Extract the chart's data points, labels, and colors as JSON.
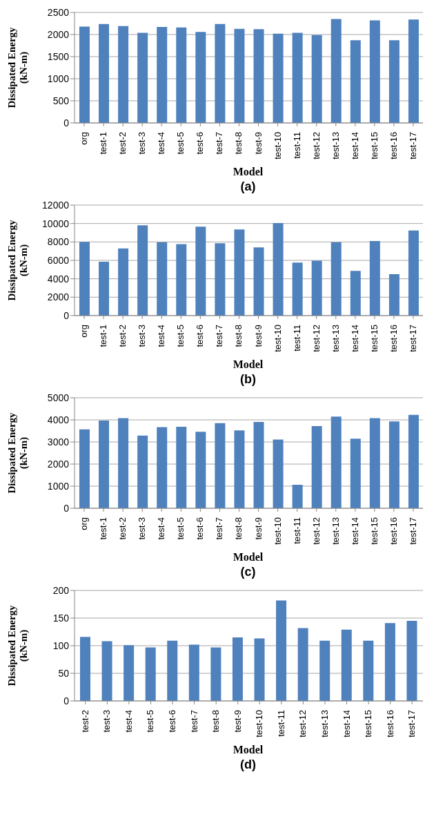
{
  "chart_data": [
    {
      "type": "bar",
      "xlabel": "Model",
      "ylabel": "Dissipated Energy (kN-m)",
      "annotations": [
        "(a)"
      ],
      "categories": [
        "org",
        "test-1",
        "test-2",
        "test-3",
        "test-4",
        "test-5",
        "test-6",
        "test-7",
        "test-8",
        "test-9",
        "test-10",
        "test-11",
        "test-12",
        "test-13",
        "test-14",
        "test-15",
        "test-16",
        "test-17"
      ],
      "color": "#4f81bd",
      "values": [
        2180,
        2240,
        2190,
        2040,
        2170,
        2160,
        2060,
        2240,
        2130,
        2120,
        2020,
        2040,
        1990,
        2350,
        1870,
        2320,
        1870,
        2340
      ],
      "ylim": [
        0,
        2500
      ],
      "yticks": [
        0,
        500,
        1000,
        1500,
        2000,
        2500
      ],
      "grid": "y",
      "legend": false
    },
    {
      "type": "bar",
      "xlabel": "Model",
      "ylabel": "Dissipated Energy (kN-m)",
      "annotations": [
        "(b)"
      ],
      "categories": [
        "org",
        "test-1",
        "test-2",
        "test-3",
        "test-4",
        "test-5",
        "test-6",
        "test-7",
        "test-8",
        "test-9",
        "test-10",
        "test-11",
        "test-12",
        "test-13",
        "test-14",
        "test-15",
        "test-16",
        "test-17"
      ],
      "color": "#4f81bd",
      "values": [
        8000,
        5850,
        7300,
        9800,
        7970,
        7760,
        9650,
        7850,
        9350,
        7400,
        10050,
        5750,
        5970,
        7970,
        4850,
        8100,
        4500,
        9250
      ],
      "ylim": [
        0,
        12000
      ],
      "yticks": [
        0,
        2000,
        4000,
        6000,
        8000,
        10000,
        12000
      ],
      "grid": "y",
      "legend": false
    },
    {
      "type": "bar",
      "xlabel": "Model",
      "ylabel": "Dissipated Energy (kN-m)",
      "annotations": [
        "(c)"
      ],
      "categories": [
        "org",
        "test-1",
        "test-2",
        "test-3",
        "test-4",
        "test-5",
        "test-6",
        "test-7",
        "test-8",
        "test-9",
        "test-10",
        "test-11",
        "test-12",
        "test-13",
        "test-14",
        "test-15",
        "test-16",
        "test-17"
      ],
      "color": "#4f81bd",
      "values": [
        3570,
        3970,
        4080,
        3290,
        3670,
        3690,
        3460,
        3850,
        3520,
        3910,
        3110,
        1060,
        3720,
        4150,
        3150,
        4080,
        3930,
        4230
      ],
      "ylim": [
        0,
        5000
      ],
      "yticks": [
        0,
        1000,
        2000,
        3000,
        4000,
        5000
      ],
      "grid": "y",
      "legend": false
    },
    {
      "type": "bar",
      "xlabel": "Model",
      "ylabel": "Dissipated Energy (kN-m)",
      "annotations": [
        "(d)"
      ],
      "categories": [
        "test-2",
        "test-3",
        "test-4",
        "test-5",
        "test-6",
        "test-7",
        "test-8",
        "test-9",
        "test-10",
        "test-11",
        "test-12",
        "test-13",
        "test-14",
        "test-15",
        "test-16",
        "test-17"
      ],
      "color": "#4f81bd",
      "values": [
        116,
        108,
        101,
        97,
        109,
        102,
        97,
        115,
        113,
        182,
        132,
        109,
        129,
        109,
        141,
        145
      ],
      "ylim": [
        0,
        200
      ],
      "yticks": [
        0,
        50,
        100,
        150,
        200
      ],
      "grid": "y",
      "legend": false
    }
  ]
}
